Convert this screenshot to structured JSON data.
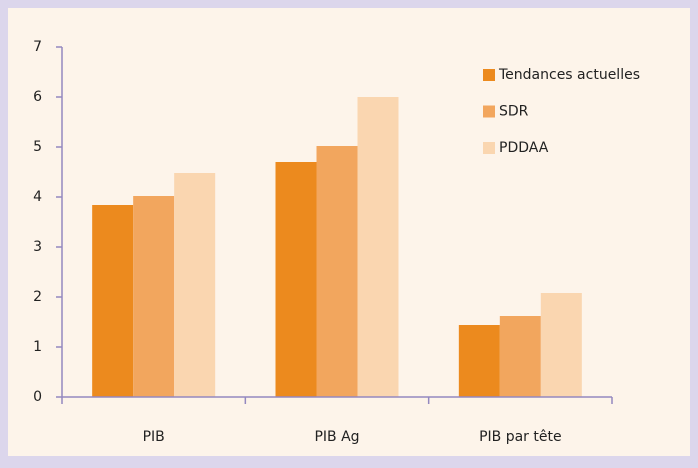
{
  "chart_data": {
    "type": "bar",
    "categories": [
      "PIB",
      "PIB Ag",
      "PIB par tête"
    ],
    "series": [
      {
        "name": "Tendances actuelles",
        "color": "#ec8a1e",
        "values": [
          3.84,
          4.7,
          1.44
        ]
      },
      {
        "name": "SDR",
        "color": "#f2a65e",
        "values": [
          4.02,
          5.02,
          1.62
        ]
      },
      {
        "name": "PDDAA",
        "color": "#fad6b0",
        "values": [
          4.48,
          6.0,
          2.08
        ]
      }
    ],
    "ylim": [
      0,
      7
    ],
    "yticks": [
      0,
      1,
      2,
      3,
      4,
      5,
      6,
      7
    ],
    "legend": "upper right"
  }
}
